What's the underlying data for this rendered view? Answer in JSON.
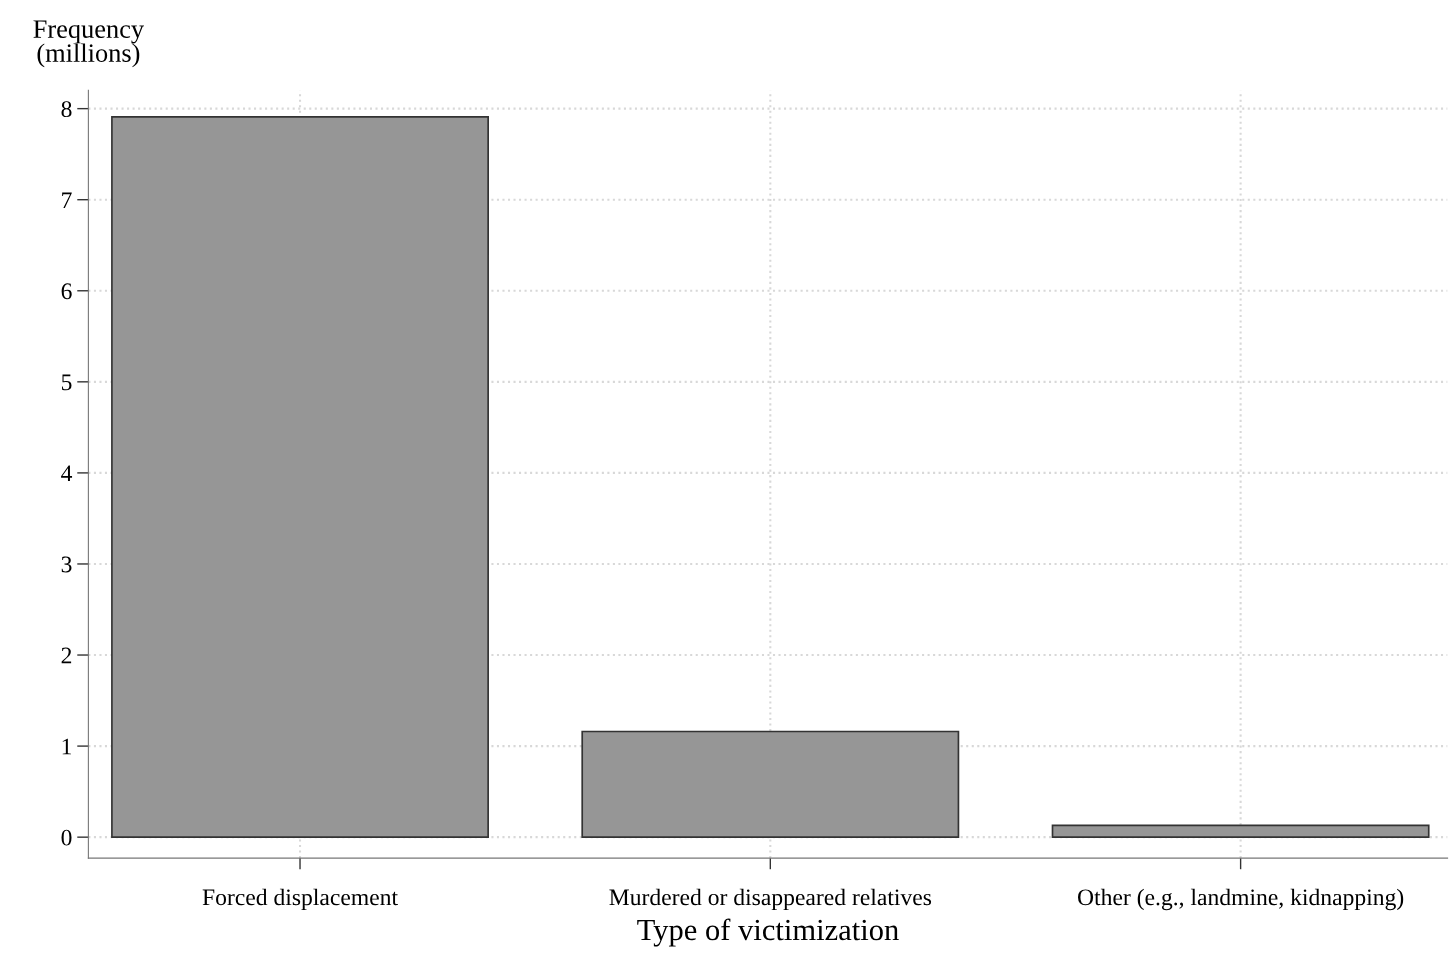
{
  "chart_data": {
    "type": "bar",
    "ylabel": "Frequency\n(millions)",
    "xlabel": "Type of victimization",
    "categories": [
      "Forced displacement",
      "Murdered or disappeared relatives",
      "Other (e.g., landmine, kidnapping)"
    ],
    "values": [
      7.91,
      1.16,
      0.13
    ],
    "color": "#969696",
    "ylim": [
      -0.23,
      8.2
    ],
    "yticks": [
      0,
      1,
      2,
      3,
      4,
      5,
      6,
      7,
      8
    ],
    "grid": true
  }
}
